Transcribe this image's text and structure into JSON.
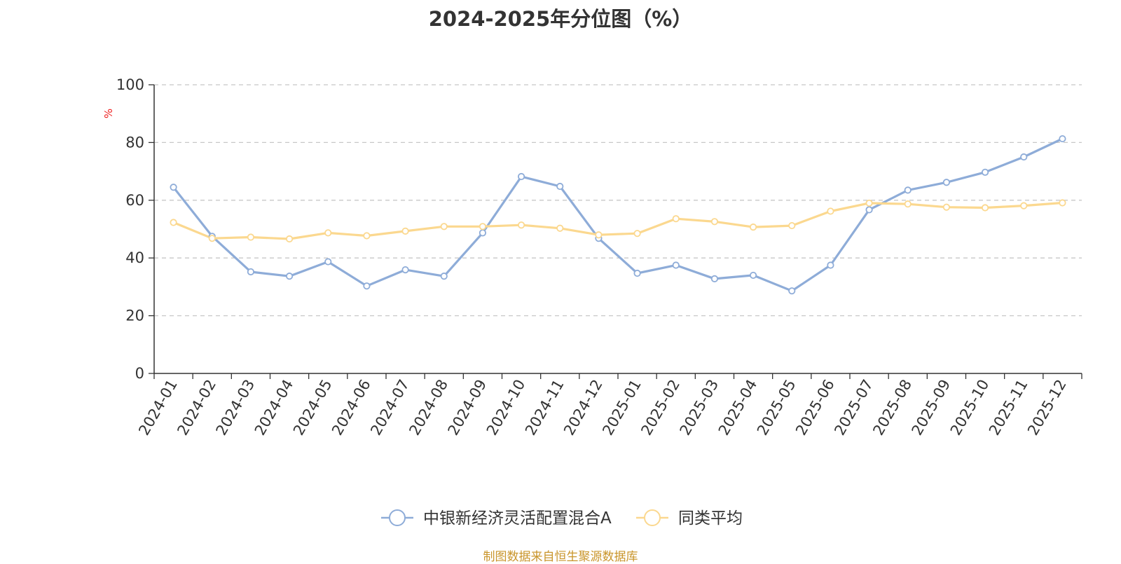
{
  "title": "2024-2025年分位图（%）",
  "source": "制图数据来自恒生聚源数据库",
  "chart_data": {
    "type": "line",
    "title": "2024-2025年分位图（%）",
    "ylabel": "%",
    "ylim": [
      0,
      100
    ],
    "yticks": [
      0,
      20,
      40,
      60,
      80,
      100
    ],
    "grid": true,
    "legend_position": "bottom",
    "categories": [
      "2024-01",
      "2024-02",
      "2024-03",
      "2024-04",
      "2024-05",
      "2024-06",
      "2024-07",
      "2024-08",
      "2024-09",
      "2024-10",
      "2024-11",
      "2024-12",
      "2025-01",
      "2025-02",
      "2025-03",
      "2025-04",
      "2025-05",
      "2025-06",
      "2025-07",
      "2025-08",
      "2025-09",
      "2025-10",
      "2025-11",
      "2025-12"
    ],
    "series": [
      {
        "name": "中银新经济灵活配置混合A",
        "color": "#8eacd8",
        "values": [
          64.5,
          47.5,
          35.2,
          33.7,
          38.7,
          30.3,
          35.9,
          33.7,
          48.7,
          68.2,
          64.8,
          46.8,
          34.7,
          37.5,
          32.8,
          34.0,
          28.6,
          37.5,
          56.7,
          63.5,
          66.2,
          69.7,
          75.0,
          81.3
        ]
      },
      {
        "name": "同类平均",
        "color": "#fbd88f",
        "values": [
          52.3,
          46.8,
          47.2,
          46.6,
          48.7,
          47.7,
          49.3,
          50.9,
          50.9,
          51.4,
          50.3,
          48.0,
          48.5,
          53.6,
          52.6,
          50.7,
          51.2,
          56.2,
          59.0,
          58.7,
          57.6,
          57.4,
          58.1,
          59.1
        ]
      }
    ]
  }
}
